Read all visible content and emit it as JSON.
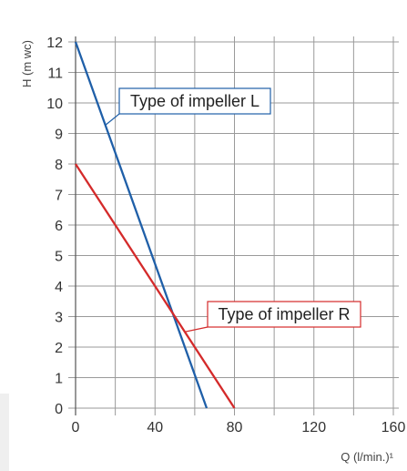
{
  "chart_data": {
    "type": "line",
    "xlabel": "Q (l/min.)¹",
    "ylabel": "H (m wc)",
    "xlim": [
      0,
      160
    ],
    "ylim": [
      0,
      12
    ],
    "x_ticks": [
      0,
      40,
      80,
      120,
      160
    ],
    "y_ticks": [
      0,
      1,
      2,
      3,
      4,
      5,
      6,
      7,
      8,
      9,
      10,
      11,
      12
    ],
    "x_minor_step": 20,
    "grid": true,
    "series": [
      {
        "name": "Type of impeller L",
        "color": "#1f5fa8",
        "points": [
          [
            0,
            12
          ],
          [
            66,
            0
          ]
        ]
      },
      {
        "name": "Type of impeller R",
        "color": "#d42a2a",
        "points": [
          [
            0,
            8
          ],
          [
            80,
            0
          ]
        ]
      }
    ]
  }
}
